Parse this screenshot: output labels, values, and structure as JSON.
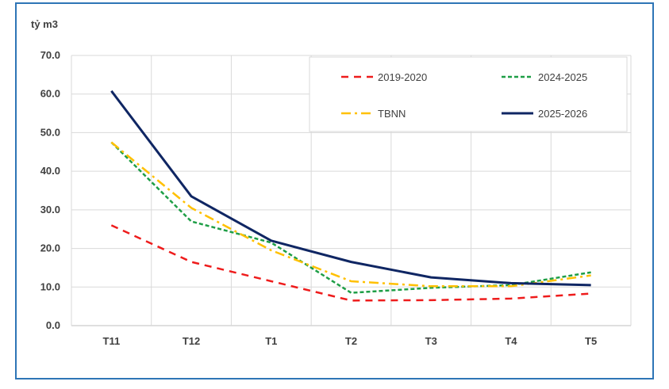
{
  "chart_data": {
    "type": "line",
    "unit_label": "tỷ m3",
    "categories": [
      "T11",
      "T12",
      "T1",
      "T2",
      "T3",
      "T4",
      "T5"
    ],
    "ylim": [
      0,
      70
    ],
    "yticks": [
      "0.0",
      "10.0",
      "20.0",
      "30.0",
      "40.0",
      "50.0",
      "60.0",
      "70.0"
    ],
    "grid": true,
    "legend_position": "top-right",
    "series": [
      {
        "name": "2019-2020",
        "color": "#ee1c1c",
        "style": "dashed",
        "values": [
          26.0,
          16.5,
          11.5,
          6.5,
          6.6,
          7.0,
          8.3
        ]
      },
      {
        "name": "2024-2025",
        "color": "#1e9e46",
        "style": "dotted",
        "values": [
          47.5,
          27.0,
          21.5,
          8.5,
          9.8,
          10.5,
          13.8
        ]
      },
      {
        "name": "TBNN",
        "color": "#ffc000",
        "style": "dashdot",
        "values": [
          47.5,
          30.5,
          19.5,
          11.5,
          10.2,
          10.2,
          13.0
        ]
      },
      {
        "name": "2025-2026",
        "color": "#0f2663",
        "style": "solid",
        "values": [
          60.8,
          33.5,
          22.0,
          16.5,
          12.5,
          11.0,
          10.5
        ]
      }
    ]
  }
}
